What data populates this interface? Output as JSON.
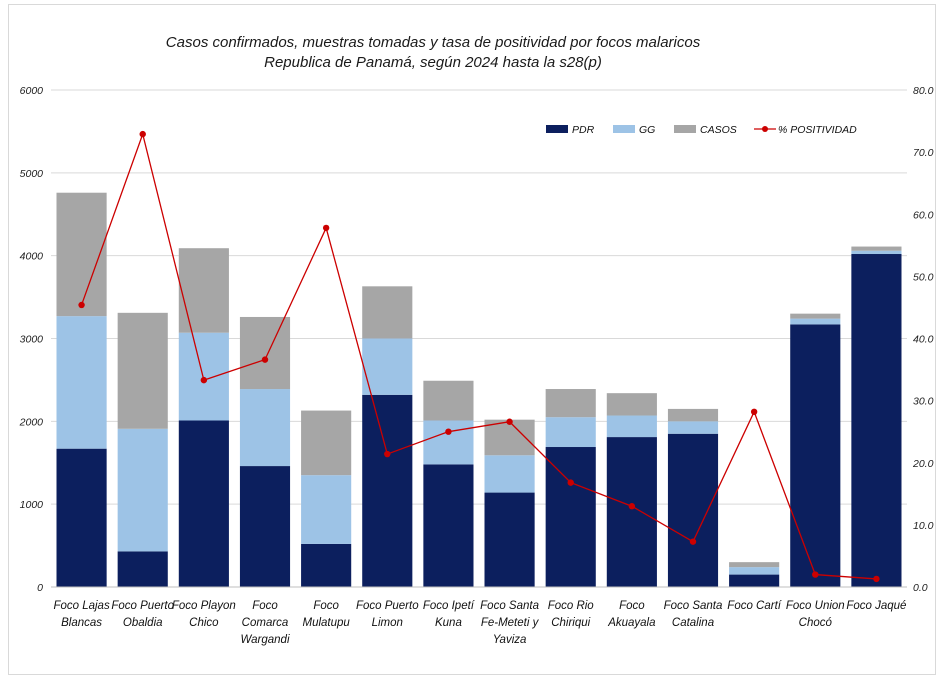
{
  "chart_data": {
    "type": "bar",
    "stacked": true,
    "title": "Casos confirmados, muestras tomadas y  tasa de positividad por focos malaricos",
    "subtitle": "Republica de Panamá, según 2024 hasta la s28(p)",
    "categories": [
      [
        "Foco Lajas",
        "Blancas"
      ],
      [
        "Foco Puerto",
        "Obaldia"
      ],
      [
        "Foco Playon",
        "Chico"
      ],
      [
        "Foco",
        "Comarca",
        "Wargandi"
      ],
      [
        "Foco",
        "Mulatupu"
      ],
      [
        "Foco Puerto",
        "Limon"
      ],
      [
        "Foco Ipetí",
        "Kuna"
      ],
      [
        "Foco Santa",
        "Fe-Meteti y",
        "Yaviza"
      ],
      [
        "Foco Rio",
        "Chiriqui"
      ],
      [
        "Foco",
        "Akuayala"
      ],
      [
        "Foco Santa",
        "Catalina"
      ],
      [
        "Foco Cartí"
      ],
      [
        "Foco Union",
        "Chocó"
      ],
      [
        "Foco Jaqué"
      ]
    ],
    "series": [
      {
        "name": "PDR",
        "color": "#0c1f5e",
        "axis": "left",
        "values": [
          1670,
          430,
          2010,
          1460,
          520,
          2320,
          1480,
          1140,
          1690,
          1810,
          1850,
          150,
          3170,
          4020
        ]
      },
      {
        "name": "GG",
        "color": "#9dc3e6",
        "axis": "left",
        "values": [
          1600,
          1480,
          1060,
          930,
          830,
          680,
          530,
          450,
          360,
          260,
          150,
          90,
          70,
          40
        ]
      },
      {
        "name": "CASOS",
        "color": "#a6a6a6",
        "axis": "left",
        "values": [
          1490,
          1400,
          1020,
          870,
          780,
          630,
          480,
          430,
          340,
          270,
          150,
          60,
          60,
          50
        ]
      },
      {
        "name": "% POSITIVIDAD",
        "type": "line",
        "color": "#cc0000",
        "axis": "right",
        "values": [
          45.4,
          72.9,
          33.3,
          36.6,
          57.8,
          21.4,
          25.0,
          26.6,
          16.8,
          13.0,
          7.3,
          28.2,
          2.0,
          1.3
        ]
      }
    ],
    "y_left": {
      "min": 0,
      "max": 6000,
      "ticks": [
        "0",
        "1000",
        "2000",
        "3000",
        "4000",
        "5000",
        "6000"
      ]
    },
    "y_right": {
      "min": 0,
      "max": 80,
      "ticks": [
        "0.0",
        "10.0",
        "20.0",
        "30.0",
        "40.0",
        "50.0",
        "60.0",
        "70.0",
        "80.0"
      ]
    },
    "grid": true,
    "legend": "top-right"
  }
}
